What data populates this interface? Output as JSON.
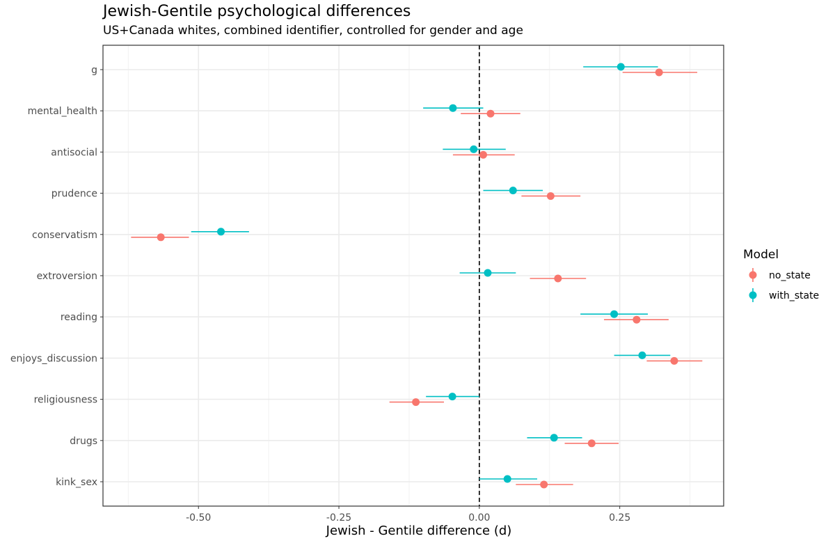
{
  "chart_data": {
    "type": "scatter",
    "subtype": "coefficient-plot-with-error-bars",
    "title": "Jewish-Gentile psychological differences",
    "subtitle": "US+Canada whites, combined identifier, controlled for gender and age",
    "xlabel": "Jewish - Gentile difference (d)",
    "ylabel": "",
    "xlim": [
      -0.67,
      0.435
    ],
    "x_ticks": [
      -0.5,
      -0.25,
      0.0,
      0.25
    ],
    "x_tick_labels": [
      "-0.50",
      "-0.25",
      "0.00",
      "0.25"
    ],
    "reference_line": 0,
    "categories": [
      "g",
      "mental_health",
      "antisocial",
      "prudence",
      "conservatism",
      "extroversion",
      "reading",
      "enjoys_discussion",
      "religiousness",
      "drugs",
      "kink_sex"
    ],
    "legend_title": "Model",
    "series": [
      {
        "name": "no_state",
        "color": "#F8766D",
        "values": [
          0.32,
          0.02,
          0.007,
          0.127,
          -0.567,
          0.14,
          0.28,
          0.347,
          -0.113,
          0.2,
          0.115
        ],
        "lower": [
          0.255,
          -0.033,
          -0.047,
          0.075,
          -0.62,
          0.09,
          0.222,
          0.298,
          -0.16,
          0.152,
          0.065
        ],
        "upper": [
          0.388,
          0.073,
          0.063,
          0.18,
          -0.517,
          0.19,
          0.337,
          0.397,
          -0.063,
          0.248,
          0.167
        ]
      },
      {
        "name": "with_state",
        "color": "#00BFC4",
        "values": [
          0.252,
          -0.047,
          -0.01,
          0.06,
          -0.46,
          0.015,
          0.24,
          0.29,
          -0.048,
          0.133,
          0.05
        ],
        "lower": [
          0.185,
          -0.1,
          -0.065,
          0.007,
          -0.513,
          -0.035,
          0.18,
          0.24,
          -0.095,
          0.085,
          0.0
        ],
        "upper": [
          0.318,
          0.007,
          0.047,
          0.113,
          -0.41,
          0.065,
          0.3,
          0.34,
          0.0,
          0.183,
          0.103
        ]
      }
    ]
  }
}
